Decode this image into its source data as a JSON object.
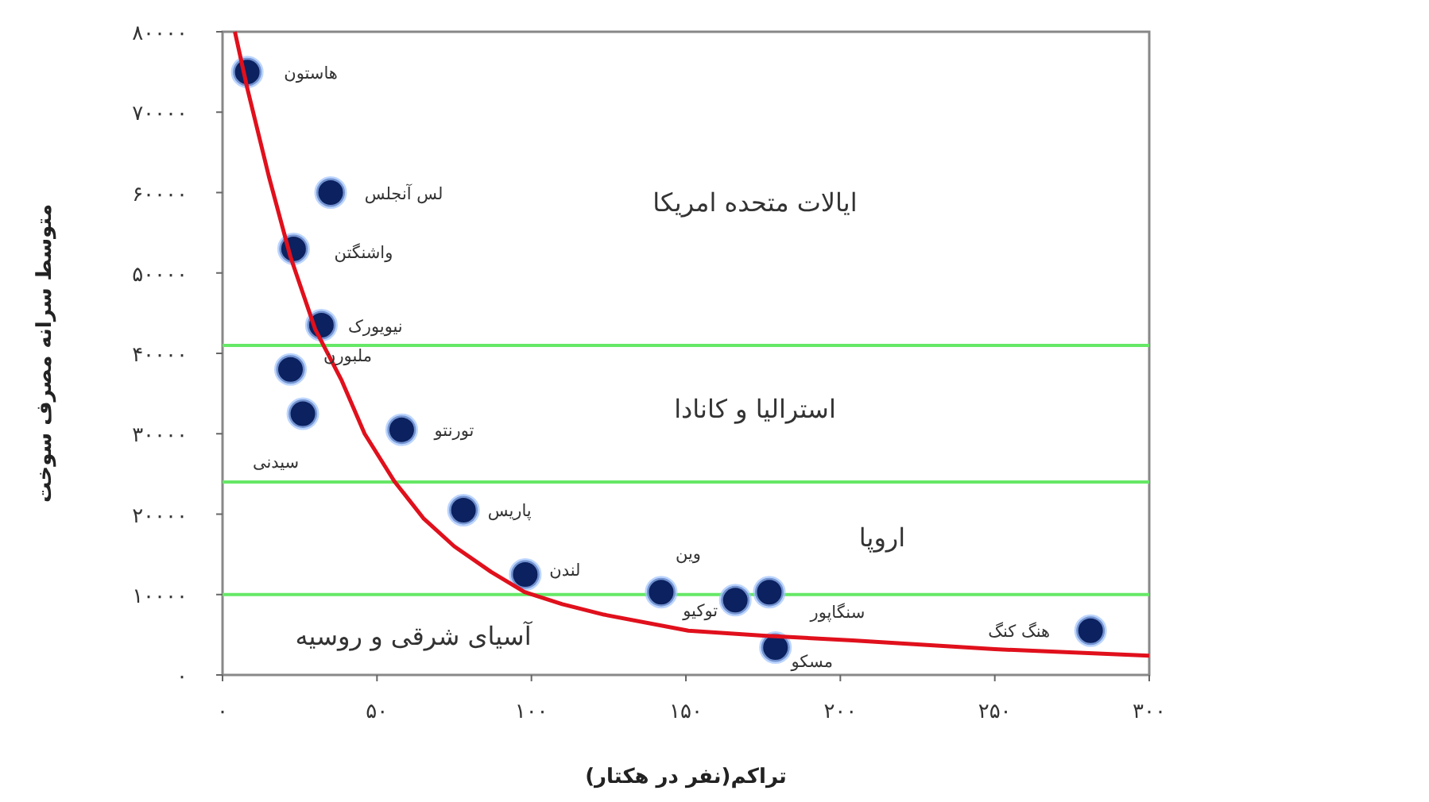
{
  "chart_data": {
    "type": "scatter",
    "xlabel": "تراکم(نفر در هکتار)",
    "ylabel": "متوسط سرانه مصرف سوخت",
    "xlim": [
      0,
      300
    ],
    "ylim": [
      0,
      80000
    ],
    "xticks": [
      {
        "value": 0,
        "label": "۰"
      },
      {
        "value": 50,
        "label": "۵۰"
      },
      {
        "value": 100,
        "label": "۱۰۰"
      },
      {
        "value": 150,
        "label": "۱۵۰"
      },
      {
        "value": 200,
        "label": "۲۰۰"
      },
      {
        "value": 250,
        "label": "۲۵۰"
      },
      {
        "value": 300,
        "label": "۳۰۰"
      }
    ],
    "yticks": [
      {
        "value": 0,
        "label": "۰"
      },
      {
        "value": 10000,
        "label": "۱۰۰۰۰"
      },
      {
        "value": 20000,
        "label": "۲۰۰۰۰"
      },
      {
        "value": 30000,
        "label": "۳۰۰۰۰"
      },
      {
        "value": 40000,
        "label": "۴۰۰۰۰"
      },
      {
        "value": 50000,
        "label": "۵۰۰۰۰"
      },
      {
        "value": 60000,
        "label": "۶۰۰۰۰"
      },
      {
        "value": 70000,
        "label": "۷۰۰۰۰"
      },
      {
        "value": 80000,
        "label": "۸۰۰۰۰"
      }
    ],
    "series": [
      {
        "marker": "circle",
        "color": "#0b2160",
        "x": [
          8,
          35,
          23,
          32,
          22,
          26,
          58,
          78,
          98,
          142,
          166,
          177,
          179,
          281
        ],
        "values": [
          75000,
          60000,
          53000,
          43500,
          38000,
          32500,
          30500,
          20500,
          12500,
          10300,
          9300,
          10300,
          3400,
          5500
        ]
      },
      {
        "type": "line",
        "color": "#e0101c",
        "x": [
          4,
          8,
          15,
          22,
          30,
          38.6,
          46,
          55.6,
          65,
          75,
          87,
          97.8,
          110,
          123.5,
          150.8,
          175,
          204,
          250,
          300
        ],
        "values": [
          80000,
          73000,
          62000,
          52000,
          43000,
          36600,
          30000,
          24100,
          19500,
          16000,
          12800,
          10300,
          8800,
          7500,
          5500,
          4900,
          4300,
          3200,
          2400
        ]
      }
    ],
    "ref_lines": [
      {
        "axis": "y",
        "value": 41000,
        "color": "#66e866"
      },
      {
        "axis": "y",
        "value": 24000,
        "color": "#66e866"
      },
      {
        "axis": "y",
        "value": 10000,
        "color": "#66e866"
      }
    ],
    "annotations": [
      {
        "text": "هاستون",
        "x": 8,
        "y": 75000
      },
      {
        "text": "لس آنجلس",
        "x": 35,
        "y": 60000
      },
      {
        "text": "واشنگتن",
        "x": 23,
        "y": 53000
      },
      {
        "text": "نیویورک",
        "x": 32,
        "y": 43500
      },
      {
        "text": "ملبورن",
        "x": 22,
        "y": 38000
      },
      {
        "text": "سیدنی",
        "x": 26,
        "y": 32500
      },
      {
        "text": "تورنتو",
        "x": 58,
        "y": 30500
      },
      {
        "text": "پاریس",
        "x": 78,
        "y": 20500
      },
      {
        "text": "لندن",
        "x": 98,
        "y": 12500
      },
      {
        "text": "وین",
        "x": 142,
        "y": 10300
      },
      {
        "text": "توکیو",
        "x": 166,
        "y": 9300
      },
      {
        "text": "سنگاپور",
        "x": 177,
        "y": 10300
      },
      {
        "text": "مسکو",
        "x": 179,
        "y": 3400
      },
      {
        "text": "هنگ کنگ",
        "x": 281,
        "y": 5500
      },
      "ایالات متحده امریکا",
      "استرالیا و کانادا",
      "اروپا",
      "آسیای شرقی و روسیه"
    ]
  }
}
